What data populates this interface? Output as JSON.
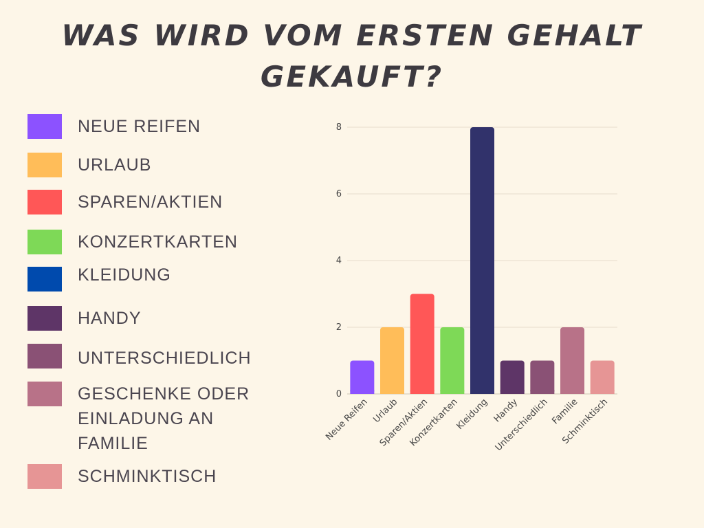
{
  "title_lines": [
    "WAS WIRD VOM ERSTEN GEHALT",
    "GEKAUFT?"
  ],
  "legend": [
    {
      "label": "NEUE REIFEN",
      "color": "#8c52ff"
    },
    {
      "label": "URLAUB",
      "color": "#ffbd59"
    },
    {
      "label": "SPAREN/AKTIEN",
      "color": "#ff5757"
    },
    {
      "label": "KONZERTKARTEN",
      "color": "#7ed957"
    },
    {
      "label": "KLEIDUNG",
      "color": "#004aad"
    },
    {
      "label": "HANDY",
      "color": "#5e3567"
    },
    {
      "label": "UNTERSCHIEDLICH",
      "color": "#8a5175"
    },
    {
      "label": "GESCHENKE ODER\nEINLADUNG AN\nFAMILIE",
      "color": "#b87288"
    },
    {
      "label": "SCHMINKTISCH",
      "color": "#e69595"
    }
  ],
  "chart_data": {
    "type": "bar",
    "title": "",
    "xlabel": "",
    "ylabel": "",
    "ylim": [
      0,
      8
    ],
    "yticks": [
      0,
      2,
      4,
      6,
      8
    ],
    "grid": true,
    "categories": [
      "Neue Reifen",
      "Urlaub",
      "Sparen/Aktien",
      "Konzertkarten",
      "Kleidung",
      "Handy",
      "Unterschiedlich",
      "Familie",
      "Schminktisch"
    ],
    "values": [
      1,
      2,
      3,
      2,
      8,
      1,
      1,
      2,
      1
    ],
    "colors": [
      "#8c52ff",
      "#ffbd59",
      "#ff5757",
      "#7ed957",
      "#31326b",
      "#5e3567",
      "#8a5175",
      "#b87288",
      "#e69595"
    ]
  }
}
